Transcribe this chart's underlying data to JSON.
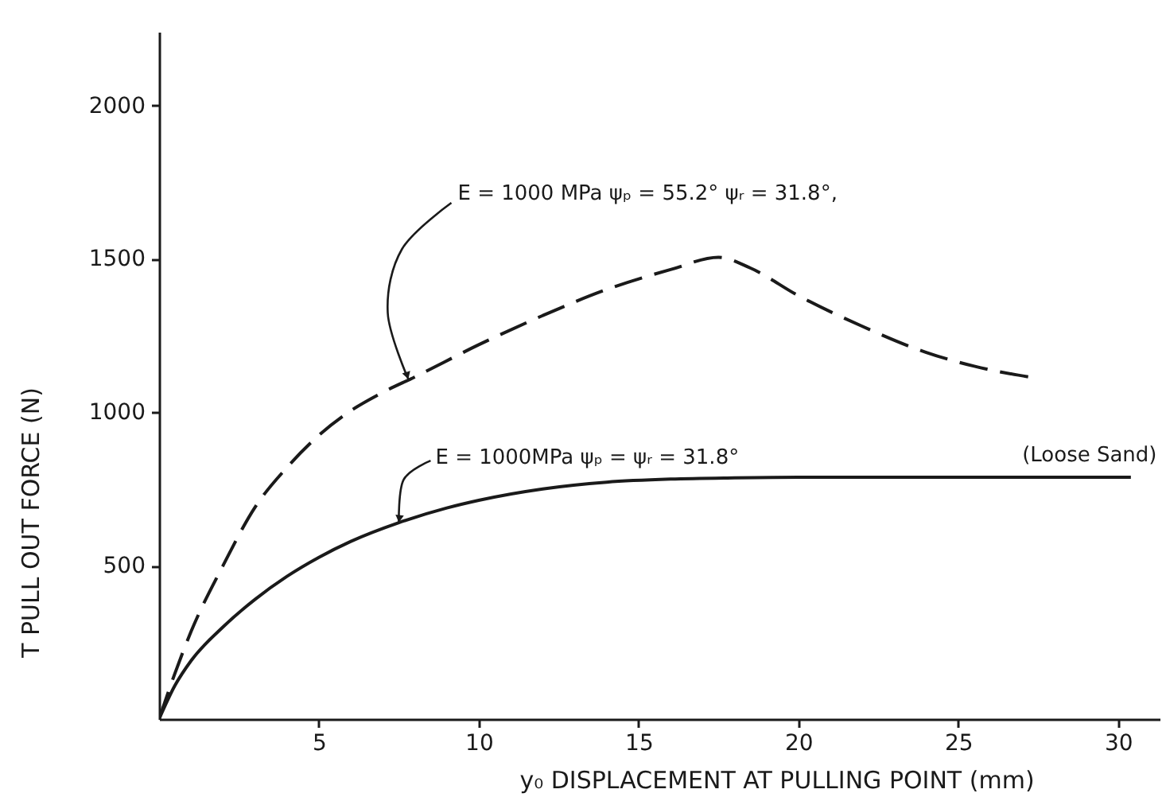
{
  "chart_data": {
    "type": "line",
    "xlabel": "y₀ DISPLACEMENT AT PULLING POINT (mm)",
    "ylabel": "T PULL OUT FORCE (N)",
    "xlim": [
      0,
      31.3
    ],
    "ylim": [
      0,
      2240
    ],
    "xticks": [
      5,
      10,
      15,
      20,
      25,
      30
    ],
    "yticks": [
      500,
      1000,
      1500,
      2000
    ],
    "grid": false,
    "series": [
      {
        "color": "#1a1a1a",
        "line_style": "dashed",
        "x": [
          0,
          0.5,
          1,
          2,
          3,
          4,
          5,
          6,
          7,
          8,
          10,
          12,
          14,
          16,
          17.5,
          18.5,
          20,
          22,
          24,
          25.5,
          27.2
        ],
        "values": [
          0,
          150,
          285,
          500,
          690,
          820,
          925,
          1005,
          1065,
          1115,
          1220,
          1315,
          1400,
          1465,
          1505,
          1470,
          1380,
          1280,
          1195,
          1150,
          1115
        ]
      },
      {
        "color": "#1a1a1a",
        "line_style": "solid",
        "x": [
          0,
          0.5,
          1,
          2,
          3,
          4,
          5,
          6,
          7.5,
          9,
          10,
          12,
          14,
          16,
          18,
          20,
          25,
          30.4
        ],
        "values": [
          0,
          110,
          190,
          300,
          390,
          465,
          527,
          579,
          640,
          688,
          713,
          750,
          772,
          782,
          786,
          788,
          788,
          788
        ]
      }
    ],
    "annotations": [
      {
        "text": "E = 1000 MPa ψₚ = 55.2° ψᵣ = 31.8°,",
        "x": 7.8,
        "y": 1107
      },
      {
        "text": "E = 1000MPa ψₚ = ψᵣ = 31.8°",
        "x": 7.5,
        "y": 640
      },
      {
        "text": "(Loose Sand)",
        "x": 30.4,
        "y": 788
      }
    ]
  }
}
